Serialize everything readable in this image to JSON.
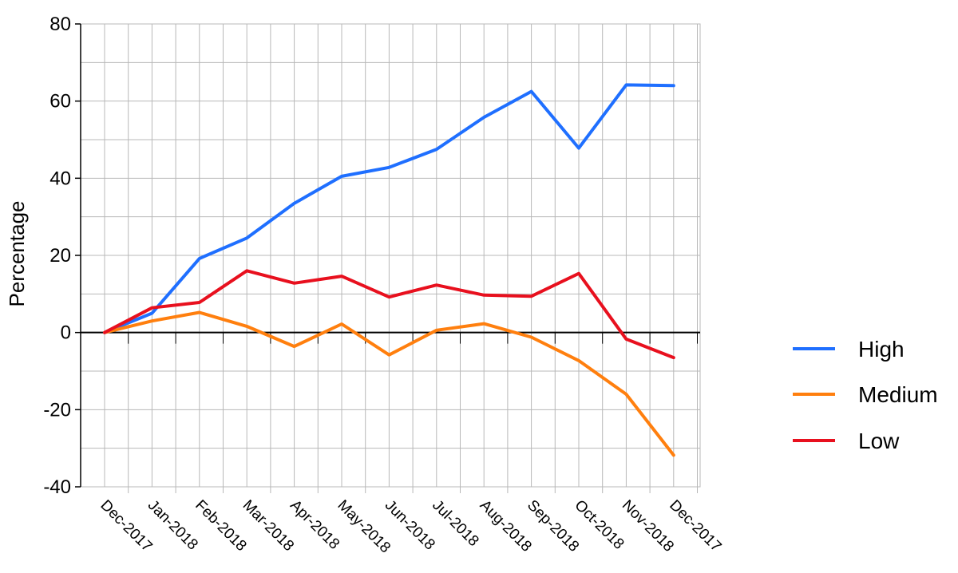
{
  "chart_data": {
    "type": "line",
    "title": "",
    "xlabel": "",
    "ylabel": "Percentage",
    "categories": [
      "Dec-2017",
      "Jan-2018",
      "Feb-2018",
      "Mar-2018",
      "Apr-2018",
      "May-2018",
      "Jun-2018",
      "Jul-2018",
      "Aug-2018",
      "Sep-2018",
      "Oct-2018",
      "Nov-2018",
      "Dec-2017"
    ],
    "series": [
      {
        "name": "High",
        "color": "#1f6fff",
        "values": [
          0,
          5,
          19.2,
          24.5,
          33.5,
          40.5,
          42.8,
          47.5,
          55.8,
          62.5,
          47.8,
          64.2,
          64
        ]
      },
      {
        "name": "Medium",
        "color": "#ff7f0e",
        "values": [
          0,
          3,
          5.2,
          1.6,
          -3.6,
          2.2,
          -5.8,
          0.6,
          2.3,
          -1.2,
          -7.3,
          -16,
          -31.8
        ]
      },
      {
        "name": "Low",
        "color": "#e8101e",
        "values": [
          0,
          6.4,
          7.8,
          16,
          12.8,
          14.6,
          9.2,
          12.3,
          9.7,
          9.4,
          15.3,
          -1.7,
          -6.5
        ]
      }
    ],
    "ylim": [
      -40,
      80
    ],
    "yticks": [
      "80",
      "60",
      "40",
      "20",
      "0",
      "-20",
      "-40"
    ],
    "ytick_values": [
      80,
      60,
      40,
      20,
      0,
      -20,
      -40
    ],
    "grid": true,
    "legend_position": "right"
  }
}
